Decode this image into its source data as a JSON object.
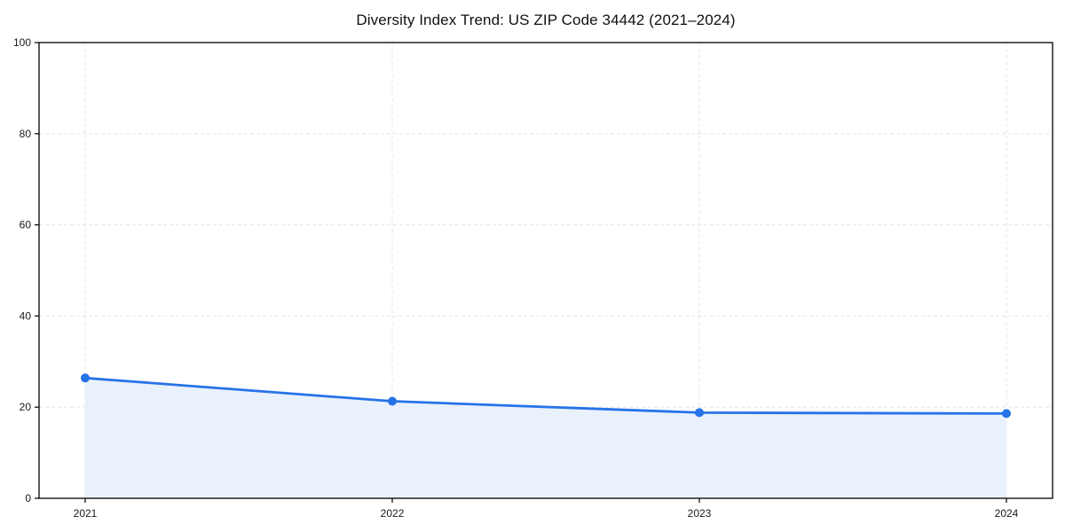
{
  "chart_data": {
    "type": "line",
    "title": "Diversity Index Trend: US ZIP Code 34442 (2021–2024)",
    "categories": [
      "2021",
      "2022",
      "2023",
      "2024"
    ],
    "series": [
      {
        "name": "Diversity Index",
        "values": [
          26.4,
          21.3,
          18.8,
          18.6
        ]
      }
    ],
    "xlabel": "",
    "ylabel": "",
    "ylim": [
      0,
      100
    ],
    "yticks": [
      0,
      20,
      40,
      60,
      80,
      100
    ],
    "grid": "dashed-both-axes",
    "legend_position": "none",
    "area_fill": true,
    "style": {
      "line_color": "#2673e8",
      "marker_color": "#2673e8",
      "fill_color": "#e9f1fd",
      "grid_color": "#e4e4e4",
      "axis_color": "#000000",
      "tick_label_color": "#1a1a1a",
      "background_color": "#ffffff"
    }
  }
}
